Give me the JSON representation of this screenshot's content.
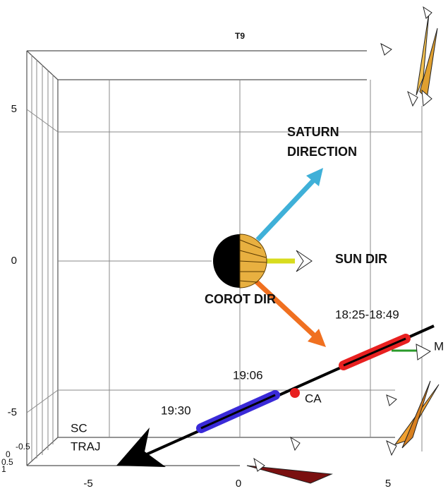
{
  "title": "T9",
  "y_ticks": [
    5,
    0,
    -5
  ],
  "x_ticks": [
    -5,
    0,
    5
  ],
  "z_ticks": [
    -0.5,
    0,
    0.5,
    1
  ],
  "labels": {
    "saturn_direction": [
      "SATURN",
      "DIRECTION"
    ],
    "sun_dir": "SUN DIR",
    "corot_dir": "COROT DIR",
    "time_red": "18:25-18:49",
    "time_mid": "19:06",
    "time_blue": "19:30",
    "ca": "CA",
    "sc_traj": [
      "SC",
      "TRAJ"
    ],
    "m": "M"
  }
}
